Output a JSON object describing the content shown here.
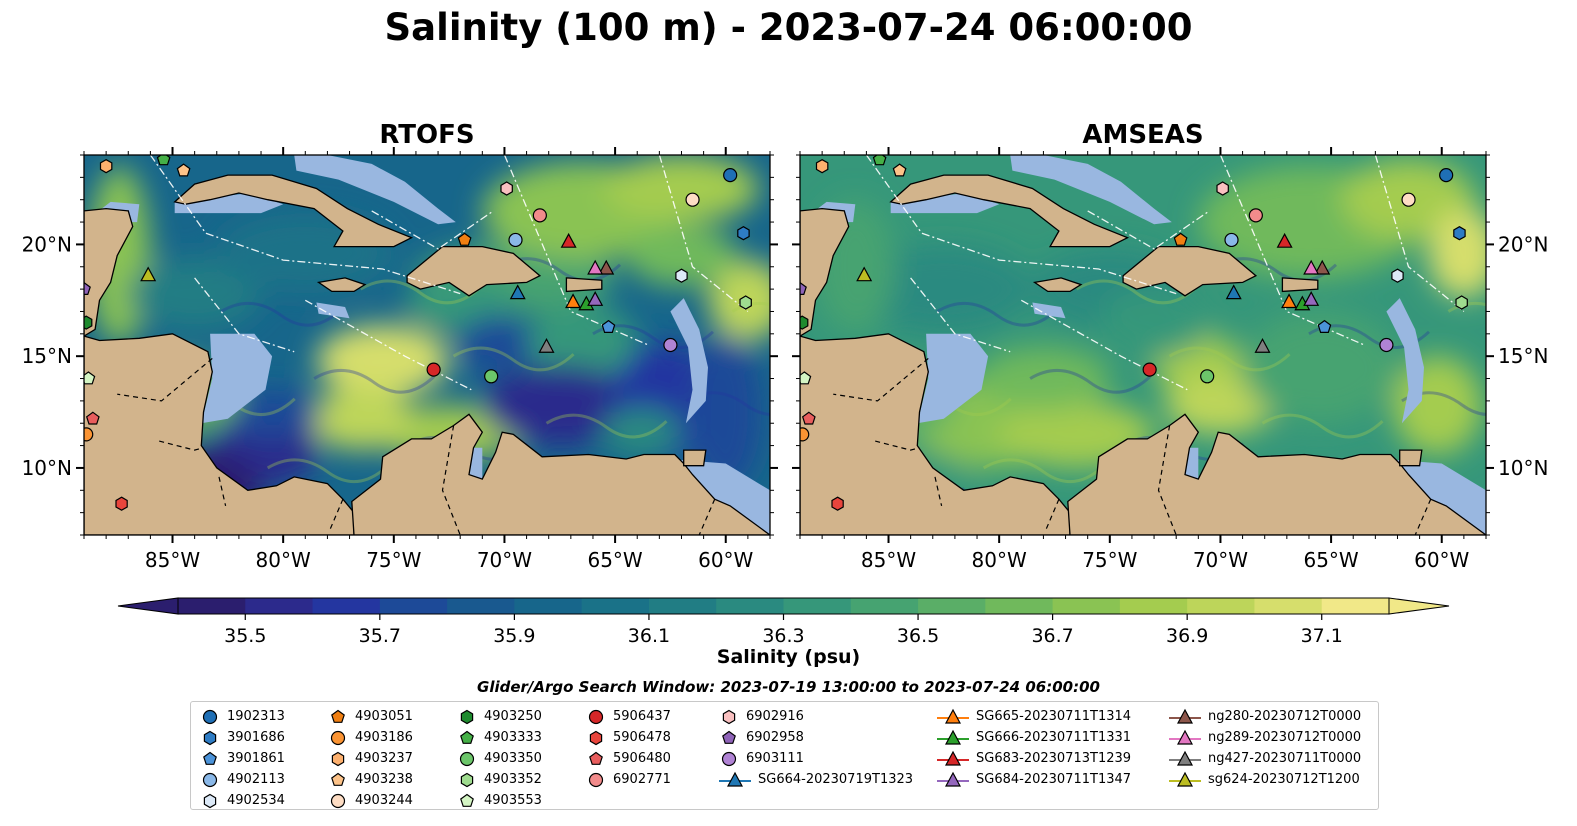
{
  "title": "Salinity (100 m) - 2023-07-24 06:00:00",
  "panels": [
    {
      "title": "RTOFS"
    },
    {
      "title": "AMSEAS"
    }
  ],
  "chart_data": {
    "type": "heatmap",
    "title": "Salinity (100 m) - 2023-07-24 06:00:00",
    "panels": [
      "RTOFS",
      "AMSEAS"
    ],
    "xlim": [
      -89,
      -58
    ],
    "ylim": [
      7,
      24
    ],
    "x_ticks": [
      "85°W",
      "80°W",
      "75°W",
      "70°W",
      "65°W",
      "60°W"
    ],
    "x_tick_values": [
      -85,
      -80,
      -75,
      -70,
      -65,
      -60
    ],
    "y_ticks": [
      "10°N",
      "15°N",
      "20°N"
    ],
    "y_tick_values": [
      10,
      15,
      20
    ],
    "colorbar": {
      "label": "Salinity (psu)",
      "ticks": [
        "35.5",
        "35.7",
        "35.9",
        "36.1",
        "36.3",
        "36.5",
        "36.7",
        "36.9",
        "37.1"
      ],
      "min": 35.4,
      "max": 37.2,
      "levels": 18,
      "extend": "both",
      "colors": [
        "#2b1e6e",
        "#2c2a8c",
        "#2436a0",
        "#1d4a98",
        "#19598f",
        "#17668b",
        "#1a7288",
        "#217d84",
        "#2a8a80",
        "#36977a",
        "#46a371",
        "#5aae67",
        "#70b95c",
        "#8ac353",
        "#a4cc4f",
        "#bdd55a",
        "#d6de6c",
        "#f1e888"
      ]
    },
    "land_color": "#d2b48c",
    "shallow_color": "#99b7e0",
    "markers": [
      {
        "id": "1902313",
        "shape": "circle",
        "color": "#1f6fb5",
        "lon": -59.8,
        "lat": 23.1
      },
      {
        "id": "3901686",
        "shape": "hexagon",
        "color": "#2e7cc4",
        "lon": -59.2,
        "lat": 20.5
      },
      {
        "id": "3901861",
        "shape": "pentagon",
        "color": "#4b93d9",
        "lon": -65.3,
        "lat": 16.3
      },
      {
        "id": "4902113",
        "shape": "circle",
        "color": "#8ab8e8",
        "lon": -69.5,
        "lat": 20.2
      },
      {
        "id": "4902534",
        "shape": "hexagon",
        "color": "#dce9f7",
        "lon": -62.0,
        "lat": 18.6
      },
      {
        "id": "4903051",
        "shape": "pentagon",
        "color": "#f07f12",
        "lon": -71.8,
        "lat": 20.2
      },
      {
        "id": "4903186",
        "shape": "circle",
        "color": "#fb9433",
        "lon": -88.9,
        "lat": 11.5
      },
      {
        "id": "4903237",
        "shape": "hexagon",
        "color": "#fdb06e",
        "lon": -88.0,
        "lat": 23.5
      },
      {
        "id": "4903238",
        "shape": "pentagon",
        "color": "#fdc389",
        "lon": -84.5,
        "lat": 23.3
      },
      {
        "id": "4903244",
        "shape": "circle",
        "color": "#feddc4",
        "lon": -61.5,
        "lat": 22.0
      },
      {
        "id": "4903250",
        "shape": "hexagon",
        "color": "#1e8a2e",
        "lon": -88.9,
        "lat": 16.5
      },
      {
        "id": "4903333",
        "shape": "pentagon",
        "color": "#45b047",
        "lon": -85.4,
        "lat": 23.8
      },
      {
        "id": "4903350",
        "shape": "circle",
        "color": "#6cc66a",
        "lon": -70.6,
        "lat": 14.1
      },
      {
        "id": "4903352",
        "shape": "hexagon",
        "color": "#9fdc8f",
        "lon": -59.1,
        "lat": 17.4
      },
      {
        "id": "4903553",
        "shape": "pentagon",
        "color": "#d4f5c4",
        "lon": -88.8,
        "lat": 14.0
      },
      {
        "id": "5906437",
        "shape": "circle",
        "color": "#d62728",
        "lon": -73.2,
        "lat": 14.4
      },
      {
        "id": "5906478",
        "shape": "hexagon",
        "color": "#e8453c",
        "lon": -87.3,
        "lat": 8.4
      },
      {
        "id": "5906480",
        "shape": "pentagon",
        "color": "#e85d5d",
        "lon": -88.6,
        "lat": 12.2
      },
      {
        "id": "6902771",
        "shape": "circle",
        "color": "#f28b8b",
        "lon": -68.4,
        "lat": 21.3
      },
      {
        "id": "6902916",
        "shape": "hexagon",
        "color": "#f9c0c0",
        "lon": -69.9,
        "lat": 22.5
      },
      {
        "id": "6902958",
        "shape": "pentagon",
        "color": "#8f63b8",
        "lon": -89.0,
        "lat": 18.0
      },
      {
        "id": "6903111",
        "shape": "circle",
        "color": "#b083d4",
        "lon": -62.5,
        "lat": 15.5
      }
    ],
    "gliders": [
      {
        "id": "SG664-20230719T1323",
        "color": "#1f77b4",
        "lon": -69.4,
        "lat": 17.8
      },
      {
        "id": "SG665-20230711T1314",
        "color": "#ff7f0e",
        "lon": -66.9,
        "lat": 17.4
      },
      {
        "id": "SG666-20230711T1331",
        "color": "#2ca02c",
        "lon": -66.3,
        "lat": 17.3
      },
      {
        "id": "SG683-20230713T1239",
        "color": "#d62728",
        "lon": -67.1,
        "lat": 20.1
      },
      {
        "id": "SG684-20230711T1347",
        "color": "#9467bd",
        "lon": -65.9,
        "lat": 17.5
      },
      {
        "id": "ng280-20230712T0000",
        "color": "#8c564b",
        "lon": -65.4,
        "lat": 18.9
      },
      {
        "id": "ng289-20230712T0000",
        "color": "#e377c2",
        "lon": -65.9,
        "lat": 18.9
      },
      {
        "id": "ng427-20230711T0000",
        "color": "#7f7f7f",
        "lon": -68.1,
        "lat": 15.4
      },
      {
        "id": "sg624-20230712T1200",
        "color": "#bcbd22",
        "lon": -86.1,
        "lat": 18.6
      }
    ],
    "legend_title": "Glider/Argo Search Window: 2023-07-19 13:00:00 to 2023-07-24 06:00:00"
  }
}
